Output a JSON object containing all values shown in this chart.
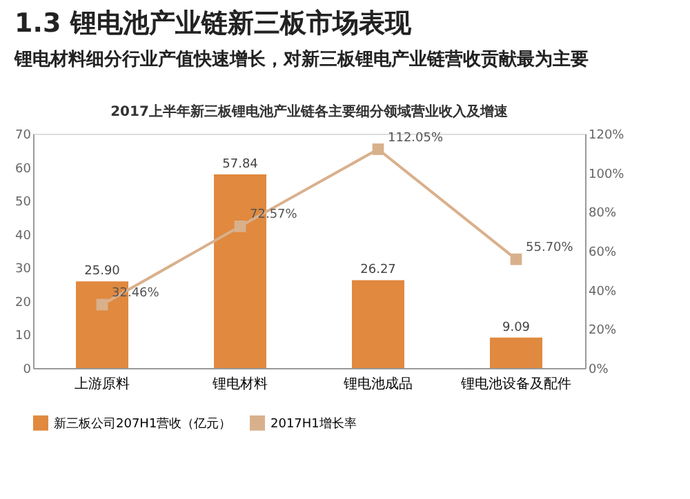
{
  "chart_data": {
    "type": "bar",
    "title": "1.3 锂电池产业链新三板市场表现",
    "subtitle": "锂电材料细分行业产值快速增长，对新三板锂电产业链营收贡献最为主要",
    "annotations": [
      "2017上半年新三板锂电池产业链各主要细分领域营业收入及增速"
    ],
    "categories": [
      "上游原料",
      "锂电材料",
      "锂电池成品",
      "锂电池设备及配件"
    ],
    "series": [
      {
        "name": "新三板公司207H1营收（亿元）",
        "color": "#e0893f",
        "values": [
          25.9,
          57.84,
          26.27,
          9.09
        ],
        "value_labels": [
          "25.90",
          "57.84",
          "26.27",
          "9.09"
        ]
      },
      {
        "name": "2017H1增长率",
        "color": "#d9b08c",
        "type": "line",
        "axis": "y2",
        "marker": "square",
        "values": [
          32.46,
          72.57,
          112.05,
          55.7
        ],
        "value_labels": [
          "32.46%",
          "72.57%",
          "112.05%",
          "55.70%"
        ]
      }
    ],
    "ylim": [
      0,
      70
    ],
    "yticks": [
      0,
      10,
      20,
      30,
      40,
      50,
      60,
      70
    ],
    "y2lim": [
      0,
      120
    ],
    "y2ticks": [
      {
        "value": 0,
        "label": "0%"
      },
      {
        "value": 20,
        "label": "20%"
      },
      {
        "value": 40,
        "label": "40%"
      },
      {
        "value": 60,
        "label": "60%"
      },
      {
        "value": 80,
        "label": "80%"
      },
      {
        "value": 100,
        "label": "100%"
      },
      {
        "value": 120,
        "label": "120%"
      }
    ],
    "grid": false,
    "legend": "bottom"
  }
}
